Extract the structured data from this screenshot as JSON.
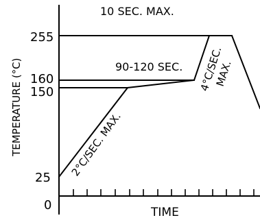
{
  "top_note": "10 SEC. MAX.",
  "y_axis": {
    "label": "TEMPERATURE (°C)",
    "ticks": [
      "255",
      "160",
      "150",
      "25",
      "0"
    ]
  },
  "x_axis": {
    "label": "TIME"
  },
  "annotations": {
    "soak": "90-120 SEC.",
    "ramp_up": "2°C/SEC. MAX.",
    "peak_ramp_1": "4°C/SEC.",
    "peak_ramp_2": "MAX."
  }
}
